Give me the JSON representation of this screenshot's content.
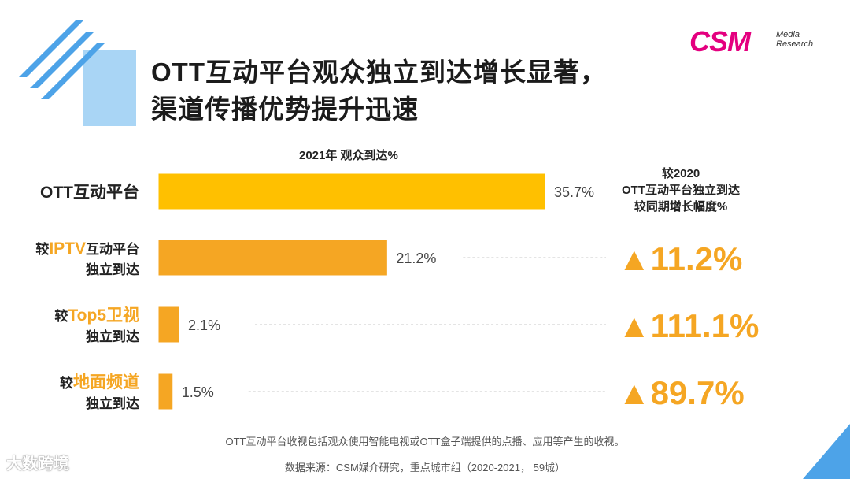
{
  "header": {
    "title_line1": "OTT互动平台观众独立到达增长显著，",
    "title_line2": "渠道传播优势提升迅速"
  },
  "logo": {
    "brand": "CSM",
    "sub_line1": "Media",
    "sub_line2": "Research"
  },
  "right_header": {
    "line1": "较2020",
    "line2": "OTT互动平台独立到达",
    "line3": "较同期增长幅度%"
  },
  "footer": {
    "note": "OTT互动平台收视包括观众使用智能电视或OTT盒子端提供的点播、应用等产生的收视。",
    "source": "数据来源：CSM媒介研究，重点城市组（2020-2021，  59城）",
    "watermark": "大数跨境"
  },
  "colors": {
    "bar_primary": "#ffc000",
    "bar_secondary": "#f5a623",
    "growth": "#f5a623",
    "accent_blue": "#4da3e8",
    "light_blue": "#a9d5f5",
    "highlight": "#f5a623"
  },
  "chart_data": {
    "type": "bar",
    "title": "2021年 观众到达%",
    "orientation": "horizontal",
    "categories": [
      {
        "prefix": "",
        "highlight": "",
        "suffix": "OTT互动平台",
        "line2": ""
      },
      {
        "prefix": "较",
        "highlight": "IPTV",
        "suffix": "互动平台",
        "line2": "独立到达"
      },
      {
        "prefix": "较",
        "highlight": "Top5卫视",
        "suffix": "",
        "line2": "独立到达"
      },
      {
        "prefix": "较",
        "highlight": "地面频道",
        "suffix": "",
        "line2": "独立到达"
      }
    ],
    "values": [
      35.7,
      21.2,
      2.1,
      1.5
    ],
    "value_labels": [
      "35.7%",
      "21.2%",
      "2.1%",
      "1.5%"
    ],
    "growth_labels": [
      "",
      "▲11.2%",
      "▲111.1%",
      "▲89.7%"
    ],
    "xlim": [
      0,
      35.7
    ]
  }
}
